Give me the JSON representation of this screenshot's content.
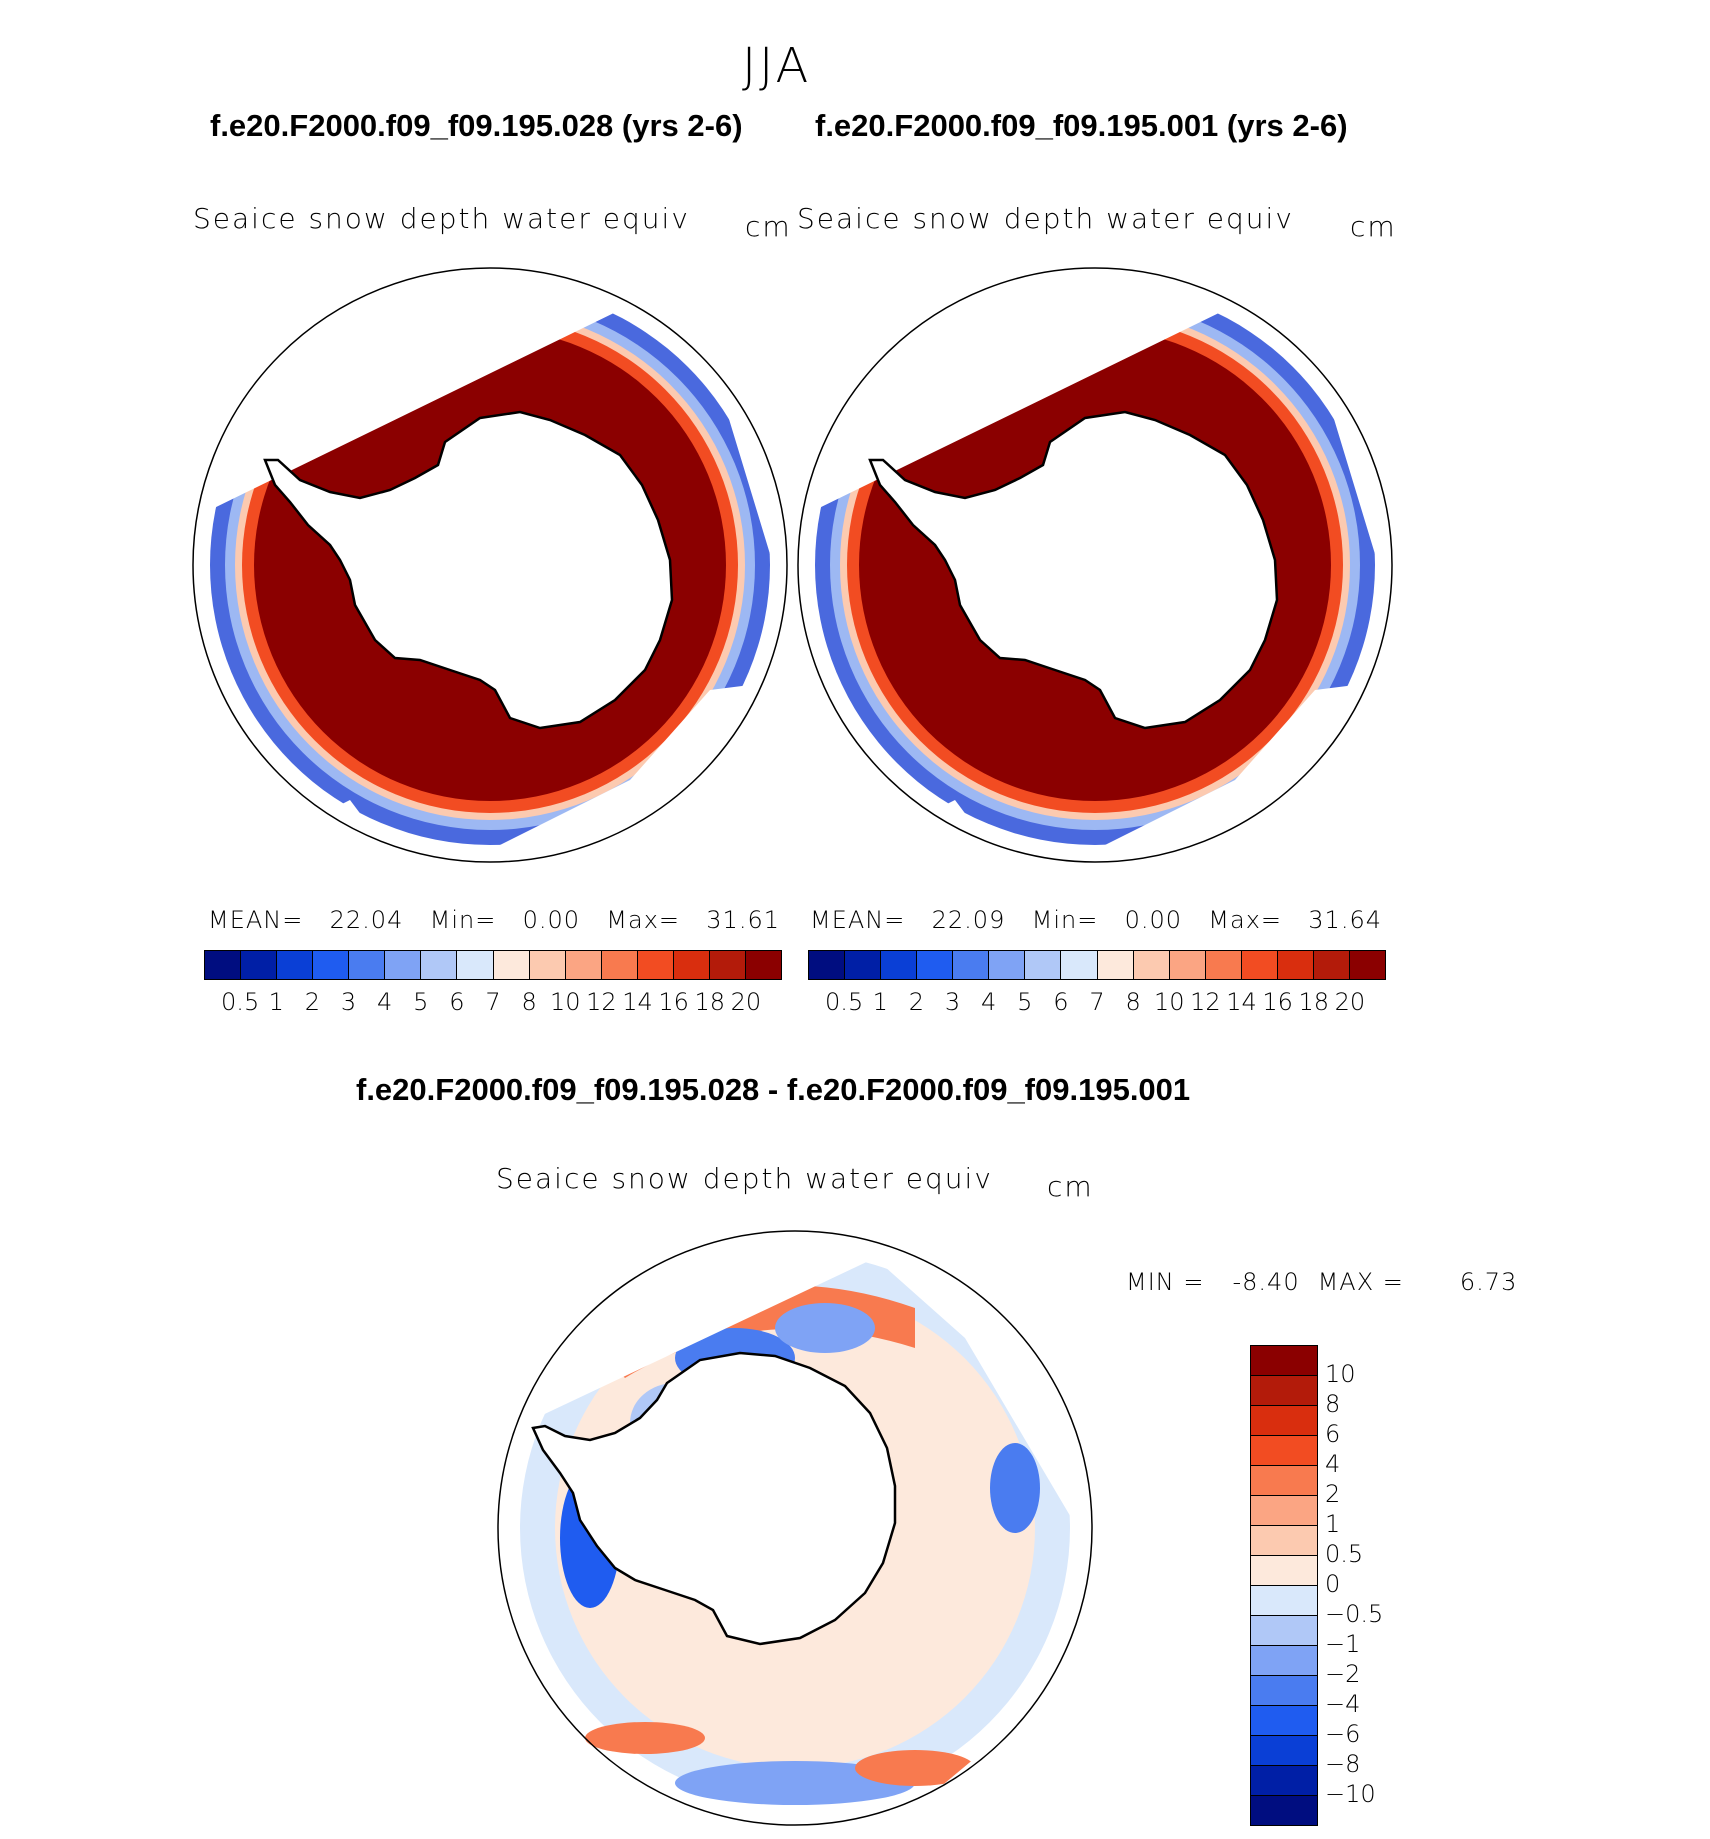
{
  "season": "JJA",
  "panels": {
    "case1": {
      "title": "f.e20.F2000.f09_f09.195.028 (yrs 2-6)",
      "variable": "Seaice snow depth water equiv",
      "units": "cm",
      "mean_label": "MEAN=",
      "mean": "22.04",
      "min_label": "Min=",
      "min": "0.00",
      "max_label": "Max=",
      "max": "31.61"
    },
    "case2": {
      "title": "f.e20.F2000.f09_f09.195.001 (yrs 2-6)",
      "variable": "Seaice snow depth water equiv",
      "units": "cm",
      "mean_label": "MEAN=",
      "mean": "22.09",
      "min_label": "Min=",
      "min": "0.00",
      "max_label": "Max=",
      "max": "31.64"
    },
    "diff": {
      "title": "f.e20.F2000.f09_f09.195.028 - f.e20.F2000.f09_f09.195.001",
      "variable": "Seaice snow depth water equiv",
      "units": "cm",
      "min_label": "MIN =",
      "min": "-8.40",
      "max_label": "MAX =",
      "max": "6.73"
    }
  },
  "abs_colorbar": {
    "ticks": [
      "0.5",
      "1",
      "2",
      "3",
      "4",
      "5",
      "6",
      "7",
      "8",
      "10",
      "12",
      "14",
      "16",
      "18",
      "20"
    ],
    "colors": [
      "#000d80",
      "#001fa6",
      "#0a3fd6",
      "#1f5cf0",
      "#4a7cf0",
      "#7fa3f5",
      "#b0c8f7",
      "#d9e8fb",
      "#fde9dc",
      "#fccab0",
      "#fba583",
      "#f87a4f",
      "#f24c22",
      "#d92e0e",
      "#b31b0a",
      "#8b0000"
    ]
  },
  "diff_colorbar": {
    "ticks": [
      "10",
      "8",
      "6",
      "4",
      "2",
      "1",
      "0.5",
      "0",
      "−0.5",
      "−1",
      "−2",
      "−4",
      "−6",
      "−8",
      "−10"
    ],
    "colors": [
      "#8b0000",
      "#b31b0a",
      "#d92e0e",
      "#f24c22",
      "#f87a4f",
      "#fba583",
      "#fccab0",
      "#fde9dc",
      "#d9e8fb",
      "#b0c8f7",
      "#7fa3f5",
      "#4a7cf0",
      "#1f5cf0",
      "#0a3fd6",
      "#001fa6",
      "#000d80"
    ]
  }
}
